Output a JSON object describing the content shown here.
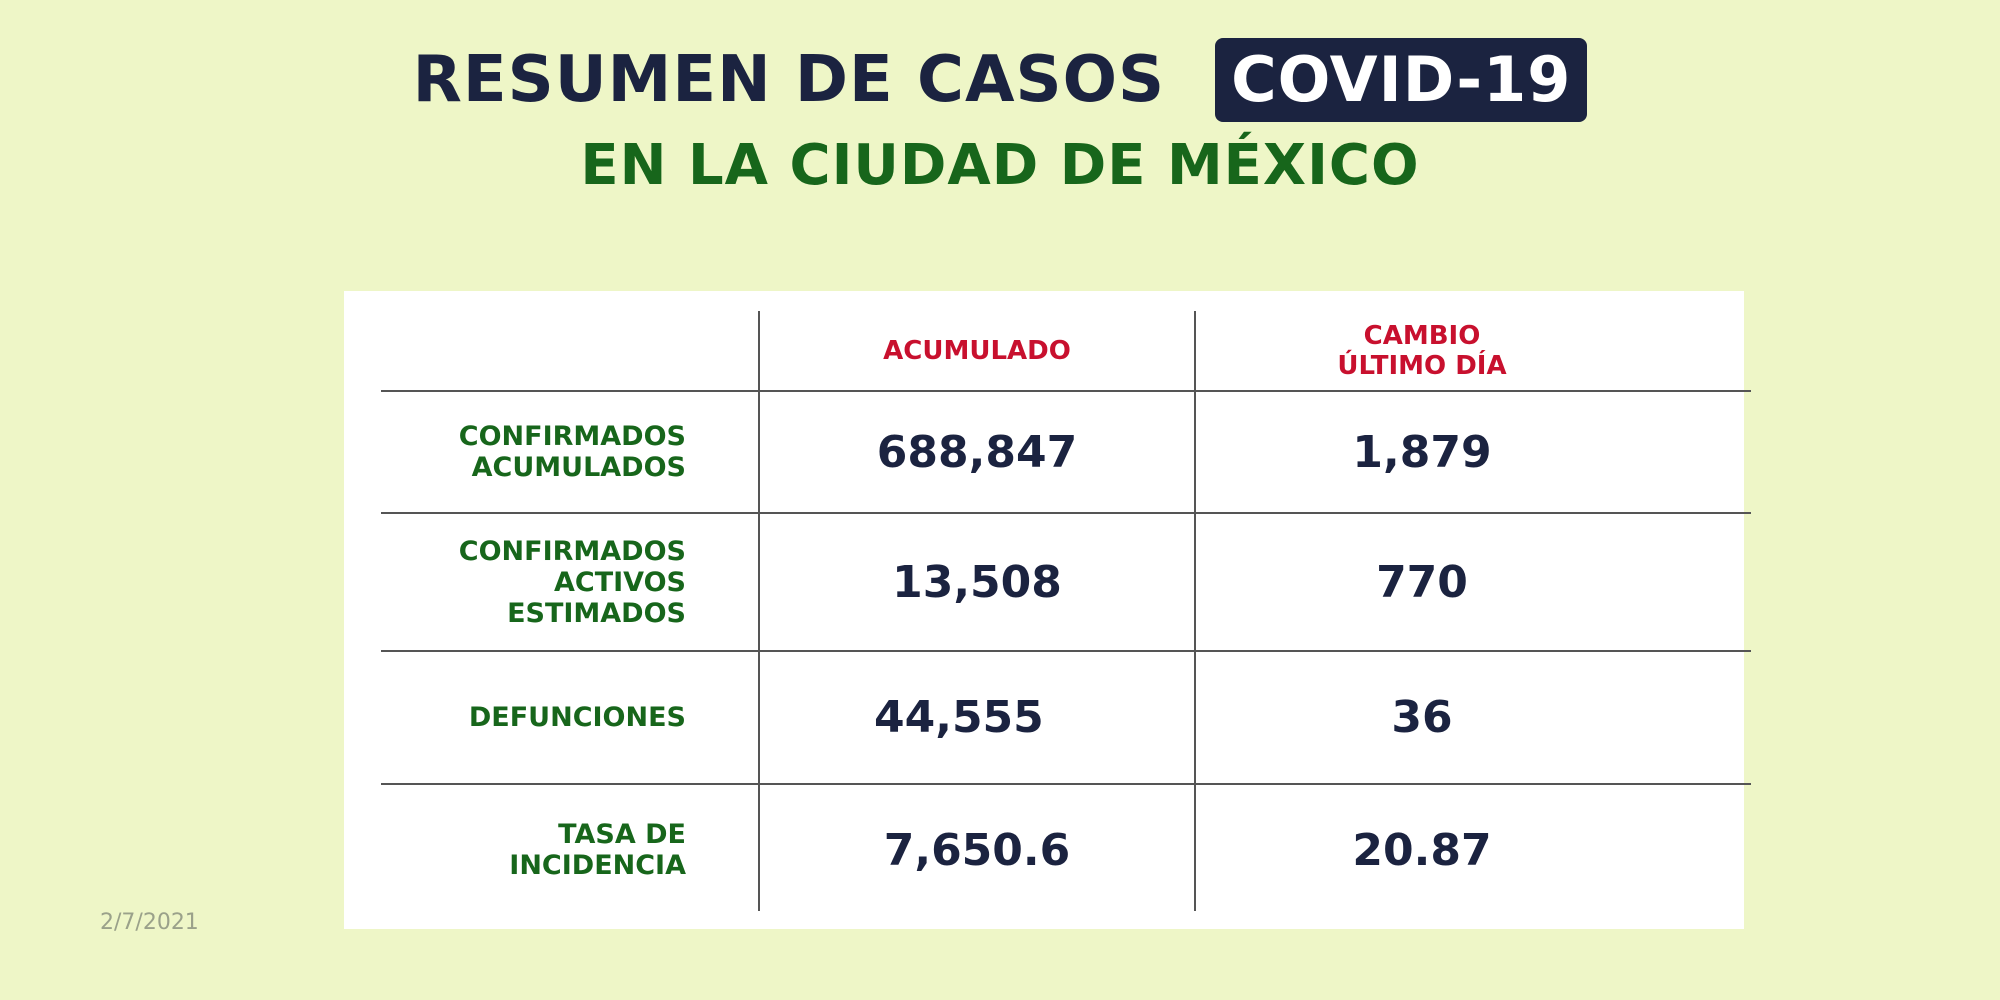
{
  "title": {
    "main": "RESUMEN DE CASOS",
    "badge": "COVID-19",
    "subtitle": "EN LA CIUDAD DE MÉXICO"
  },
  "table": {
    "col_acumulado": "ACUMULADO",
    "col_cambio_line1": "CAMBIO",
    "col_cambio_line2": "ÚLTIMO DÍA",
    "rows": [
      {
        "label": [
          "CONFIRMADOS",
          "ACUMULADOS"
        ],
        "acumulado": "688,847",
        "cambio": "1,879"
      },
      {
        "label": [
          "CONFIRMADOS",
          "ACTIVOS",
          "ESTIMADOS"
        ],
        "acumulado": "13,508",
        "cambio": "770"
      },
      {
        "label": [
          "DEFUNCIONES"
        ],
        "acumulado": "44,555",
        "cambio": "36"
      },
      {
        "label": [
          "TASA DE",
          "INCIDENCIA"
        ],
        "acumulado": "7,650.6",
        "cambio": "20.87"
      }
    ]
  },
  "date": "2/7/2021",
  "colors": {
    "background": "#eef6c7",
    "navy": "#1b2340",
    "green": "#17661b",
    "red": "#c8102e"
  }
}
